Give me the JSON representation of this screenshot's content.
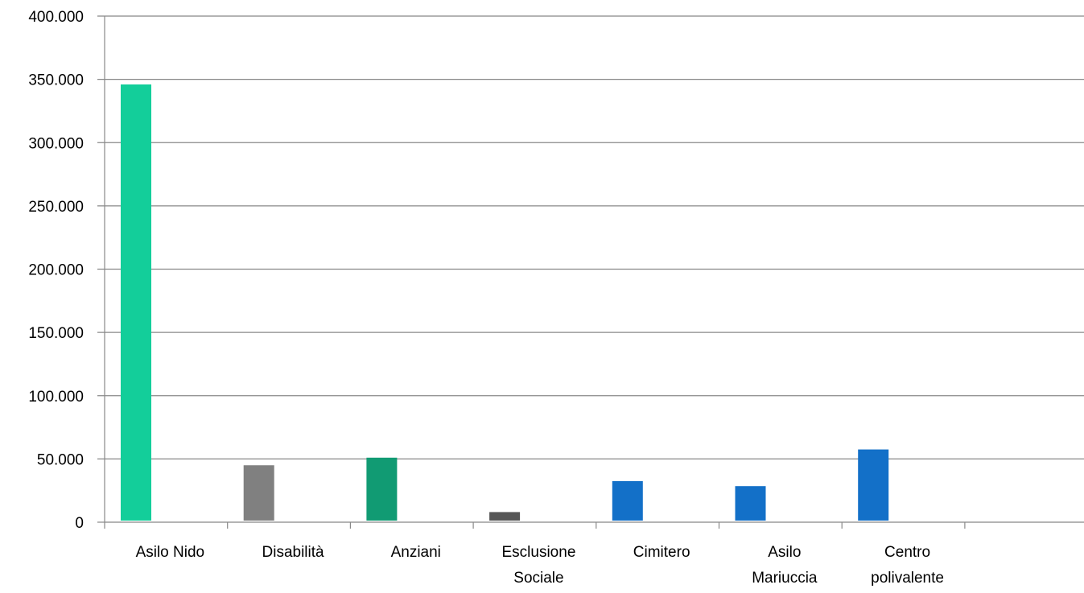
{
  "chart_data": {
    "type": "bar",
    "categories": [
      [
        "Asilo Nido"
      ],
      [
        "Disabilità"
      ],
      [
        "Anziani"
      ],
      [
        "Esclusione",
        "Sociale"
      ],
      [
        "Cimitero"
      ],
      [
        "Asilo",
        "Mariuccia"
      ],
      [
        "Centro",
        "polivalente"
      ]
    ],
    "values": [
      346000,
      45000,
      51000,
      8000,
      32500,
      28500,
      57500
    ],
    "colors": [
      "#13CE9A",
      "#808080",
      "#119B73",
      "#565656",
      "#1370C8",
      "#1370C8",
      "#1370C8"
    ],
    "ylim": [
      0,
      400000
    ],
    "yticks": [
      "0",
      "50.000",
      "100.000",
      "150.000",
      "200.000",
      "250.000",
      "300.000",
      "350.000",
      "400.000"
    ],
    "ytick_values": [
      0,
      50000,
      100000,
      150000,
      200000,
      250000,
      300000,
      350000,
      400000
    ],
    "grid": true,
    "gridline_color": "#888888",
    "title": "",
    "xlabel": "",
    "ylabel": ""
  }
}
